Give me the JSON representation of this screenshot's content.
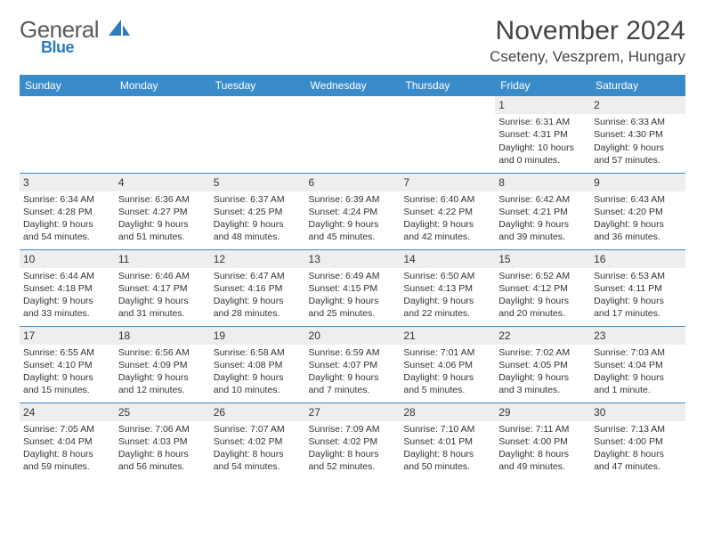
{
  "brand": {
    "name": "General",
    "sub": "Blue"
  },
  "header": {
    "title": "November 2024",
    "location": "Cseteny, Veszprem, Hungary"
  },
  "colors": {
    "header_bg": "#3a8bc9",
    "header_text": "#ffffff",
    "daynum_bg": "#eeeeee",
    "rule": "#3a8bc9",
    "text": "#333333",
    "brand_grey": "#5a5a5a",
    "brand_blue": "#2c7bbf"
  },
  "weekdays": [
    "Sunday",
    "Monday",
    "Tuesday",
    "Wednesday",
    "Thursday",
    "Friday",
    "Saturday"
  ],
  "weeks": [
    [
      {
        "num": "",
        "empty": true
      },
      {
        "num": "",
        "empty": true
      },
      {
        "num": "",
        "empty": true
      },
      {
        "num": "",
        "empty": true
      },
      {
        "num": "",
        "empty": true
      },
      {
        "num": "1",
        "sunrise": "Sunrise: 6:31 AM",
        "sunset": "Sunset: 4:31 PM",
        "day1": "Daylight: 10 hours",
        "day2": "and 0 minutes."
      },
      {
        "num": "2",
        "sunrise": "Sunrise: 6:33 AM",
        "sunset": "Sunset: 4:30 PM",
        "day1": "Daylight: 9 hours",
        "day2": "and 57 minutes."
      }
    ],
    [
      {
        "num": "3",
        "sunrise": "Sunrise: 6:34 AM",
        "sunset": "Sunset: 4:28 PM",
        "day1": "Daylight: 9 hours",
        "day2": "and 54 minutes."
      },
      {
        "num": "4",
        "sunrise": "Sunrise: 6:36 AM",
        "sunset": "Sunset: 4:27 PM",
        "day1": "Daylight: 9 hours",
        "day2": "and 51 minutes."
      },
      {
        "num": "5",
        "sunrise": "Sunrise: 6:37 AM",
        "sunset": "Sunset: 4:25 PM",
        "day1": "Daylight: 9 hours",
        "day2": "and 48 minutes."
      },
      {
        "num": "6",
        "sunrise": "Sunrise: 6:39 AM",
        "sunset": "Sunset: 4:24 PM",
        "day1": "Daylight: 9 hours",
        "day2": "and 45 minutes."
      },
      {
        "num": "7",
        "sunrise": "Sunrise: 6:40 AM",
        "sunset": "Sunset: 4:22 PM",
        "day1": "Daylight: 9 hours",
        "day2": "and 42 minutes."
      },
      {
        "num": "8",
        "sunrise": "Sunrise: 6:42 AM",
        "sunset": "Sunset: 4:21 PM",
        "day1": "Daylight: 9 hours",
        "day2": "and 39 minutes."
      },
      {
        "num": "9",
        "sunrise": "Sunrise: 6:43 AM",
        "sunset": "Sunset: 4:20 PM",
        "day1": "Daylight: 9 hours",
        "day2": "and 36 minutes."
      }
    ],
    [
      {
        "num": "10",
        "sunrise": "Sunrise: 6:44 AM",
        "sunset": "Sunset: 4:18 PM",
        "day1": "Daylight: 9 hours",
        "day2": "and 33 minutes."
      },
      {
        "num": "11",
        "sunrise": "Sunrise: 6:46 AM",
        "sunset": "Sunset: 4:17 PM",
        "day1": "Daylight: 9 hours",
        "day2": "and 31 minutes."
      },
      {
        "num": "12",
        "sunrise": "Sunrise: 6:47 AM",
        "sunset": "Sunset: 4:16 PM",
        "day1": "Daylight: 9 hours",
        "day2": "and 28 minutes."
      },
      {
        "num": "13",
        "sunrise": "Sunrise: 6:49 AM",
        "sunset": "Sunset: 4:15 PM",
        "day1": "Daylight: 9 hours",
        "day2": "and 25 minutes."
      },
      {
        "num": "14",
        "sunrise": "Sunrise: 6:50 AM",
        "sunset": "Sunset: 4:13 PM",
        "day1": "Daylight: 9 hours",
        "day2": "and 22 minutes."
      },
      {
        "num": "15",
        "sunrise": "Sunrise: 6:52 AM",
        "sunset": "Sunset: 4:12 PM",
        "day1": "Daylight: 9 hours",
        "day2": "and 20 minutes."
      },
      {
        "num": "16",
        "sunrise": "Sunrise: 6:53 AM",
        "sunset": "Sunset: 4:11 PM",
        "day1": "Daylight: 9 hours",
        "day2": "and 17 minutes."
      }
    ],
    [
      {
        "num": "17",
        "sunrise": "Sunrise: 6:55 AM",
        "sunset": "Sunset: 4:10 PM",
        "day1": "Daylight: 9 hours",
        "day2": "and 15 minutes."
      },
      {
        "num": "18",
        "sunrise": "Sunrise: 6:56 AM",
        "sunset": "Sunset: 4:09 PM",
        "day1": "Daylight: 9 hours",
        "day2": "and 12 minutes."
      },
      {
        "num": "19",
        "sunrise": "Sunrise: 6:58 AM",
        "sunset": "Sunset: 4:08 PM",
        "day1": "Daylight: 9 hours",
        "day2": "and 10 minutes."
      },
      {
        "num": "20",
        "sunrise": "Sunrise: 6:59 AM",
        "sunset": "Sunset: 4:07 PM",
        "day1": "Daylight: 9 hours",
        "day2": "and 7 minutes."
      },
      {
        "num": "21",
        "sunrise": "Sunrise: 7:01 AM",
        "sunset": "Sunset: 4:06 PM",
        "day1": "Daylight: 9 hours",
        "day2": "and 5 minutes."
      },
      {
        "num": "22",
        "sunrise": "Sunrise: 7:02 AM",
        "sunset": "Sunset: 4:05 PM",
        "day1": "Daylight: 9 hours",
        "day2": "and 3 minutes."
      },
      {
        "num": "23",
        "sunrise": "Sunrise: 7:03 AM",
        "sunset": "Sunset: 4:04 PM",
        "day1": "Daylight: 9 hours",
        "day2": "and 1 minute."
      }
    ],
    [
      {
        "num": "24",
        "sunrise": "Sunrise: 7:05 AM",
        "sunset": "Sunset: 4:04 PM",
        "day1": "Daylight: 8 hours",
        "day2": "and 59 minutes."
      },
      {
        "num": "25",
        "sunrise": "Sunrise: 7:06 AM",
        "sunset": "Sunset: 4:03 PM",
        "day1": "Daylight: 8 hours",
        "day2": "and 56 minutes."
      },
      {
        "num": "26",
        "sunrise": "Sunrise: 7:07 AM",
        "sunset": "Sunset: 4:02 PM",
        "day1": "Daylight: 8 hours",
        "day2": "and 54 minutes."
      },
      {
        "num": "27",
        "sunrise": "Sunrise: 7:09 AM",
        "sunset": "Sunset: 4:02 PM",
        "day1": "Daylight: 8 hours",
        "day2": "and 52 minutes."
      },
      {
        "num": "28",
        "sunrise": "Sunrise: 7:10 AM",
        "sunset": "Sunset: 4:01 PM",
        "day1": "Daylight: 8 hours",
        "day2": "and 50 minutes."
      },
      {
        "num": "29",
        "sunrise": "Sunrise: 7:11 AM",
        "sunset": "Sunset: 4:00 PM",
        "day1": "Daylight: 8 hours",
        "day2": "and 49 minutes."
      },
      {
        "num": "30",
        "sunrise": "Sunrise: 7:13 AM",
        "sunset": "Sunset: 4:00 PM",
        "day1": "Daylight: 8 hours",
        "day2": "and 47 minutes."
      }
    ]
  ]
}
